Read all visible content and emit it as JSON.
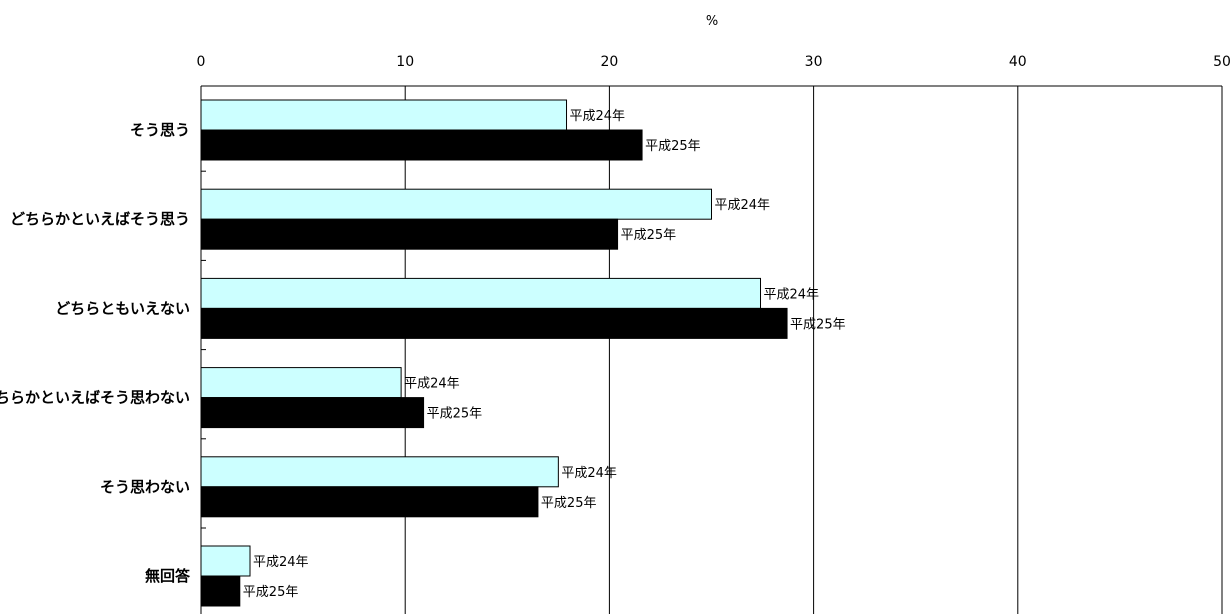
{
  "chart_data": {
    "type": "bar",
    "orientation": "horizontal",
    "unit": "%",
    "xlim": [
      0,
      50
    ],
    "ticks": [
      0,
      10,
      20,
      30,
      40,
      50
    ],
    "grid": true,
    "categories": [
      "そう思う",
      "どちらかといえばそう思う",
      "どちらともいえない",
      "どちらかといえばそう思わない",
      "そう思わない",
      "無回答"
    ],
    "series": [
      {
        "name": "平成24年",
        "color": "#ccffff",
        "values": [
          17.9,
          25.0,
          27.4,
          9.8,
          17.5,
          2.4
        ]
      },
      {
        "name": "平成25年",
        "color": "#000000",
        "values": [
          21.6,
          20.4,
          28.7,
          10.9,
          16.5,
          1.9
        ]
      }
    ]
  }
}
